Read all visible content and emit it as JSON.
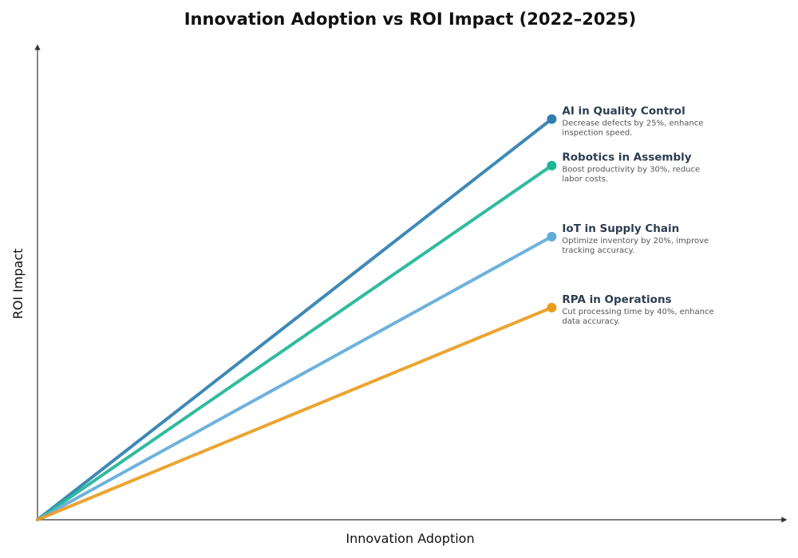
{
  "chart_data": {
    "type": "line",
    "title": "Innovation Adoption vs ROI Impact (2022–2025)",
    "xlabel": "Innovation Adoption",
    "ylabel": "ROI Impact",
    "grid": false,
    "xlim": [
      0,
      100
    ],
    "ylim": [
      0,
      100
    ],
    "series": [
      {
        "name": "AI in Quality Control",
        "description_lines": [
          "Decrease defects by 25%, enhance",
          "inspection speed."
        ],
        "color": "#2e7fb0",
        "points": [
          [
            0,
            0
          ],
          [
            68.7,
            85.2
          ]
        ]
      },
      {
        "name": "Robotics in Assembly",
        "description_lines": [
          "Boost productivity by 30%, reduce",
          "labor costs."
        ],
        "color": "#1fb597",
        "points": [
          [
            0,
            0
          ],
          [
            68.7,
            75.3
          ]
        ]
      },
      {
        "name": "IoT in Supply Chain",
        "description_lines": [
          "Optimize inventory by 20%, improve",
          "tracking accuracy."
        ],
        "color": "#61abd9",
        "points": [
          [
            0,
            0
          ],
          [
            68.7,
            60.2
          ]
        ]
      },
      {
        "name": "RPA in Operations",
        "description_lines": [
          "Cut processing time by 40%, enhance",
          "data accuracy."
        ],
        "color": "#ea9c1f",
        "points": [
          [
            0,
            0
          ],
          [
            68.7,
            45.1
          ]
        ]
      }
    ]
  }
}
